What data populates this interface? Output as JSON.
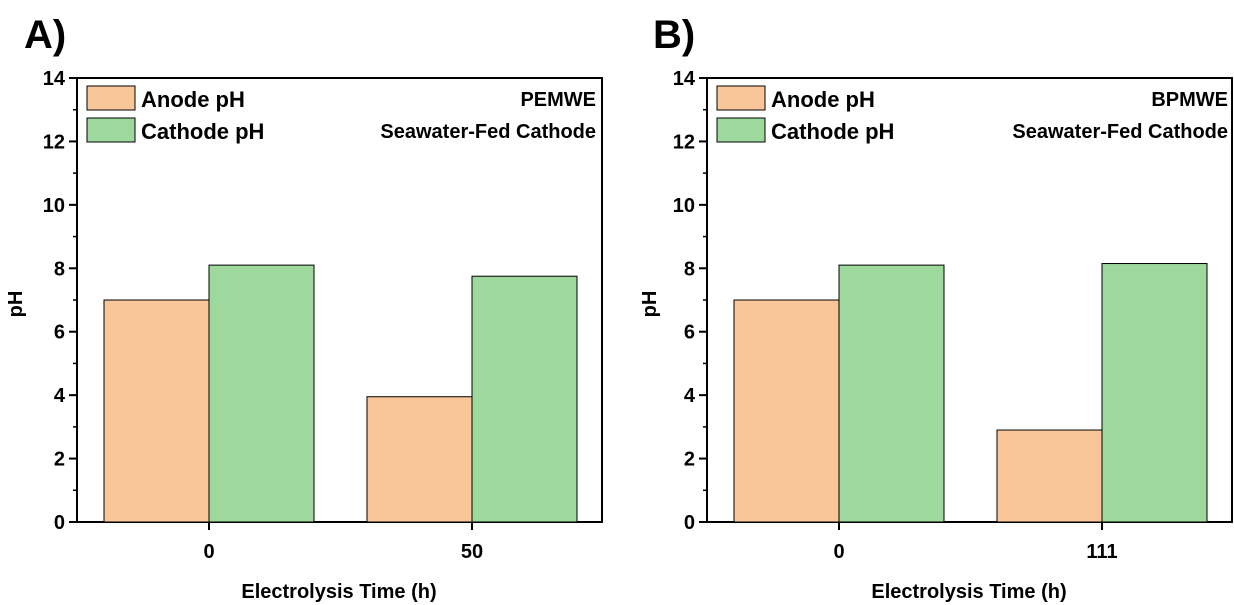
{
  "chart_data": [
    {
      "type": "bar",
      "panel_label": "A)",
      "title": "",
      "annotation": [
        "PEMWE",
        "Seawater-Fed Cathode"
      ],
      "xlabel": "Electrolysis Time (h)",
      "ylabel": "pH",
      "ylim": [
        0,
        14
      ],
      "yticks": [
        "0",
        "2",
        "4",
        "6",
        "8",
        "10",
        "12",
        "14"
      ],
      "categories": [
        "0",
        "50"
      ],
      "series": [
        {
          "name": "Anode pH",
          "values": [
            7.0,
            3.95
          ]
        },
        {
          "name": "Cathode pH",
          "values": [
            8.1,
            7.75
          ]
        }
      ],
      "legend_position": "top-left",
      "grid": false
    },
    {
      "type": "bar",
      "panel_label": "B)",
      "title": "",
      "annotation": [
        "BPMWE",
        "Seawater-Fed Cathode"
      ],
      "xlabel": "Electrolysis Time (h)",
      "ylabel": "pH",
      "ylim": [
        0,
        14
      ],
      "yticks": [
        "0",
        "2",
        "4",
        "6",
        "8",
        "10",
        "12",
        "14"
      ],
      "categories": [
        "0",
        "111"
      ],
      "series": [
        {
          "name": "Anode pH",
          "values": [
            7.0,
            2.9
          ]
        },
        {
          "name": "Cathode pH",
          "values": [
            8.1,
            8.15
          ]
        }
      ],
      "legend_position": "top-left",
      "grid": false
    }
  ],
  "colors": {
    "anode": "#f9c699",
    "cathode": "#9dd89d",
    "axis": "#000000"
  }
}
